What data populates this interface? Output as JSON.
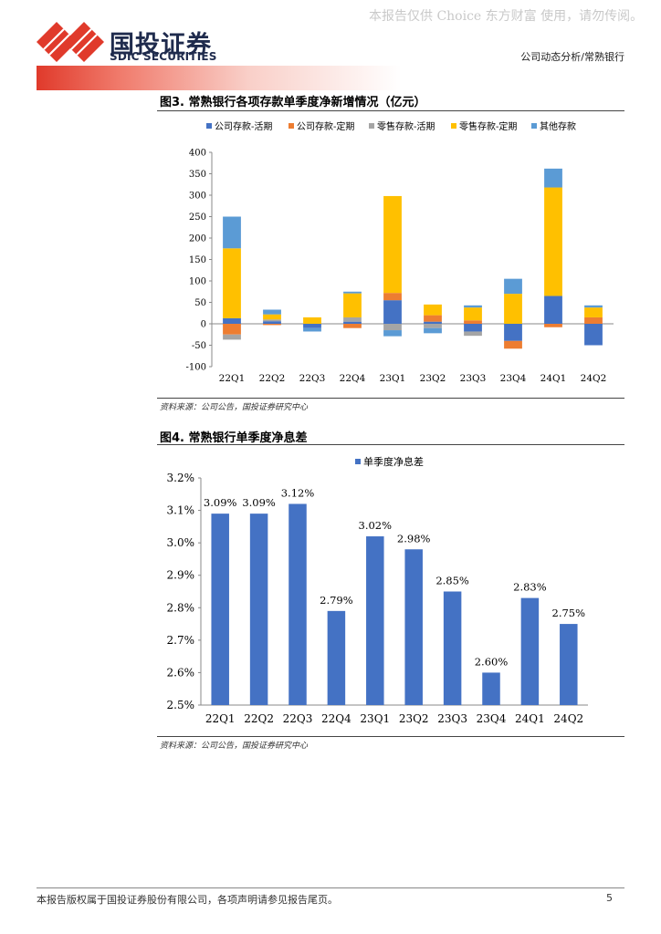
{
  "watermark": "本报告仅供 Choice 东方财富 使用，请勿传阅。",
  "header": {
    "logo_cn": "国投证券",
    "logo_en": "SDIC SECURITIES",
    "section": "公司动态分析/常熟银行"
  },
  "colors": {
    "brand_red": "#e03a2b",
    "brand_navy": "#1f2b4d",
    "corp_demand": "#4472c4",
    "corp_time": "#ed7d31",
    "retail_demand": "#a5a5a5",
    "retail_time": "#ffc000",
    "other": "#5b9bd5",
    "nim_bar": "#4472c4"
  },
  "figure3": {
    "title": "图3. 常熟银行各项存款单季度净新增情况（亿元）",
    "source": "资料来源：公司公告，国投证券研究中心"
  },
  "figure4": {
    "title": "图4. 常熟银行单季度净息差",
    "source": "资料来源：公司公告，国投证券研究中心"
  },
  "chart_data": [
    {
      "type": "bar",
      "stacked": true,
      "title": "",
      "categories": [
        "22Q1",
        "22Q2",
        "22Q3",
        "22Q4",
        "23Q1",
        "23Q2",
        "23Q3",
        "23Q4",
        "24Q1",
        "24Q2"
      ],
      "series": [
        {
          "name": "公司存款-活期",
          "color": "#4472c4",
          "values": [
            13,
            6,
            -10,
            5,
            55,
            5,
            -18,
            -40,
            65,
            -50
          ]
        },
        {
          "name": "公司存款-定期",
          "color": "#ed7d31",
          "values": [
            -25,
            -3,
            0,
            -10,
            17,
            15,
            8,
            -18,
            -8,
            15
          ]
        },
        {
          "name": "零售存款-活期",
          "color": "#a5a5a5",
          "values": [
            -12,
            4,
            0,
            10,
            -15,
            -10,
            -10,
            0,
            0,
            0
          ]
        },
        {
          "name": "零售存款-定期",
          "color": "#ffc000",
          "values": [
            163,
            12,
            15,
            56,
            226,
            25,
            30,
            70,
            253,
            23
          ]
        },
        {
          "name": "其他存款",
          "color": "#5b9bd5",
          "values": [
            74,
            11,
            -8,
            4,
            -14,
            -12,
            5,
            35,
            44,
            5
          ]
        }
      ],
      "ylim": [
        -100,
        400
      ],
      "yticks": [
        -100,
        -50,
        0,
        50,
        100,
        150,
        200,
        250,
        300,
        350,
        400
      ],
      "grid": false,
      "legend": "top"
    },
    {
      "type": "bar",
      "title": "",
      "categories": [
        "22Q1",
        "22Q2",
        "22Q3",
        "22Q4",
        "23Q1",
        "23Q2",
        "23Q3",
        "23Q4",
        "24Q1",
        "24Q2"
      ],
      "series": [
        {
          "name": "单季度净息差",
          "color": "#4472c4",
          "values": [
            3.09,
            3.09,
            3.12,
            2.79,
            3.02,
            2.98,
            2.85,
            2.6,
            2.83,
            2.75
          ]
        }
      ],
      "data_labels": [
        "3.09%",
        "3.09%",
        "3.12%",
        "2.79%",
        "3.02%",
        "2.98%",
        "2.85%",
        "2.60%",
        "2.83%",
        "2.75%"
      ],
      "ylim": [
        2.5,
        3.2
      ],
      "yticks": [
        "2.5%",
        "2.6%",
        "2.7%",
        "2.8%",
        "2.9%",
        "3.0%",
        "3.1%",
        "3.2%"
      ],
      "grid": false,
      "legend": "top"
    }
  ],
  "footer": {
    "disclaimer": "本报告版权属于国投证券股份有限公司，各项声明请参见报告尾页。",
    "page": "5"
  }
}
